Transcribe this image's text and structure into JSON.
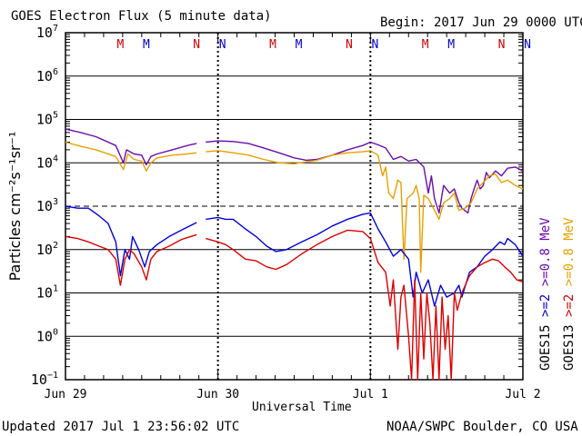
{
  "chart_data": {
    "type": "line",
    "title": "GOES Electron Flux (5 minute data)",
    "begin_label": "Begin: 2017 Jun 29 0000 UTC",
    "xlabel": "Universal Time",
    "ylabel": "Particles cm⁻²s⁻¹sr⁻¹",
    "yscale": "log",
    "ylim": [
      0.1,
      10000000
    ],
    "ytick_labels": [
      {
        "base": "10",
        "exp": "7",
        "value": 10000000
      },
      {
        "base": "10",
        "exp": "6",
        "value": 1000000
      },
      {
        "base": "10",
        "exp": "5",
        "value": 100000
      },
      {
        "base": "10",
        "exp": "4",
        "value": 10000
      },
      {
        "base": "10",
        "exp": "3",
        "value": 1000
      },
      {
        "base": "10",
        "exp": "2",
        "value": 100
      },
      {
        "base": "10",
        "exp": "1",
        "value": 10
      },
      {
        "base": "10",
        "exp": "0",
        "value": 1
      },
      {
        "base": "10",
        "exp": "−1",
        "value": 0.1
      }
    ],
    "xlim": [
      "2017-06-29",
      "2017-07-02"
    ],
    "xtick_labels": [
      "Jun 29",
      "Jun 30",
      "Jul 1",
      "Jul 2"
    ],
    "threshold_line": 1000,
    "grid": true,
    "noon_midnight_markers": [
      {
        "label": "M",
        "day": 0.36,
        "color": "#cc0000"
      },
      {
        "label": "M",
        "day": 0.53,
        "color": "#0000cc"
      },
      {
        "label": "N",
        "day": 0.86,
        "color": "#cc0000"
      },
      {
        "label": "N",
        "day": 1.03,
        "color": "#0000cc"
      },
      {
        "label": "M",
        "day": 1.36,
        "color": "#cc0000"
      },
      {
        "label": "M",
        "day": 1.53,
        "color": "#0000cc"
      },
      {
        "label": "N",
        "day": 1.86,
        "color": "#cc0000"
      },
      {
        "label": "N",
        "day": 2.03,
        "color": "#0000cc"
      },
      {
        "label": "M",
        "day": 2.36,
        "color": "#cc0000"
      },
      {
        "label": "M",
        "day": 2.53,
        "color": "#0000cc"
      },
      {
        "label": "N",
        "day": 2.86,
        "color": "#cc0000"
      },
      {
        "label": "N",
        "day": 3.03,
        "color": "#0000cc"
      }
    ],
    "legend": [
      {
        "prefix": "GOES15",
        "entries": [
          {
            "text": ">=2",
            "color": "#0000dd"
          },
          {
            "text": ">=0.8 MeV",
            "color": "#6a0dad"
          }
        ]
      },
      {
        "prefix": "GOES13",
        "entries": [
          {
            "text": ">=2",
            "color": "#dd0000"
          },
          {
            "text": ">=0.8 MeV",
            "color": "#e8a000"
          }
        ]
      }
    ],
    "series": [
      {
        "name": "GOES15 >=0.8 MeV",
        "color": "#6a0dad",
        "points": [
          [
            0,
            60000
          ],
          [
            0.1,
            50000
          ],
          [
            0.2,
            40000
          ],
          [
            0.33,
            25000
          ],
          [
            0.38,
            10000
          ],
          [
            0.4,
            20000
          ],
          [
            0.45,
            16000
          ],
          [
            0.5,
            15000
          ],
          [
            0.53,
            9000
          ],
          [
            0.56,
            14000
          ],
          [
            0.6,
            16000
          ],
          [
            0.7,
            20000
          ],
          [
            0.8,
            25000
          ],
          [
            0.86,
            28000
          ],
          null,
          [
            0.92,
            30000
          ],
          [
            1.0,
            32000
          ],
          [
            1.1,
            31000
          ],
          [
            1.2,
            28000
          ],
          [
            1.3,
            22000
          ],
          [
            1.4,
            17000
          ],
          [
            1.5,
            13000
          ],
          [
            1.58,
            11500
          ],
          [
            1.65,
            12000
          ],
          [
            1.75,
            15000
          ],
          [
            1.85,
            20000
          ],
          [
            1.95,
            25000
          ],
          [
            2.0,
            30000
          ],
          [
            2.05,
            26000
          ],
          [
            2.1,
            22000
          ],
          [
            2.15,
            12000
          ],
          [
            2.2,
            14000
          ],
          [
            2.25,
            11000
          ],
          [
            2.3,
            12000
          ],
          [
            2.35,
            8000
          ],
          [
            2.38,
            2000
          ],
          [
            2.4,
            5000
          ],
          [
            2.42,
            1500
          ],
          [
            2.45,
            700
          ],
          [
            2.48,
            3000
          ],
          [
            2.52,
            2000
          ],
          [
            2.55,
            2500
          ],
          [
            2.58,
            1200
          ],
          [
            2.6,
            900
          ],
          [
            2.64,
            700
          ],
          [
            2.66,
            1500
          ],
          [
            2.68,
            2500
          ],
          [
            2.7,
            4000
          ],
          [
            2.72,
            2500
          ],
          [
            2.74,
            3000
          ],
          [
            2.76,
            6000
          ],
          [
            2.78,
            4500
          ],
          [
            2.82,
            6500
          ],
          [
            2.86,
            5000
          ],
          [
            2.9,
            7500
          ],
          [
            2.95,
            8000
          ],
          [
            3.0,
            6500
          ]
        ]
      },
      {
        "name": "GOES13 >=0.8 MeV",
        "color": "#e8a000",
        "points": [
          [
            0,
            30000
          ],
          [
            0.1,
            24000
          ],
          [
            0.2,
            20000
          ],
          [
            0.33,
            14000
          ],
          [
            0.38,
            7000
          ],
          [
            0.41,
            16000
          ],
          [
            0.45,
            12000
          ],
          [
            0.5,
            11000
          ],
          [
            0.53,
            6500
          ],
          [
            0.56,
            10000
          ],
          [
            0.6,
            13000
          ],
          [
            0.7,
            15000
          ],
          [
            0.8,
            16000
          ],
          [
            0.86,
            17000
          ],
          null,
          [
            0.92,
            18000
          ],
          [
            1.0,
            19000
          ],
          [
            1.1,
            17000
          ],
          [
            1.2,
            15000
          ],
          [
            1.3,
            12000
          ],
          [
            1.4,
            10000
          ],
          [
            1.5,
            9500
          ],
          [
            1.58,
            10500
          ],
          [
            1.65,
            11500
          ],
          [
            1.75,
            15000
          ],
          [
            1.85,
            17000
          ],
          [
            1.95,
            18000
          ],
          [
            2.0,
            19000
          ],
          [
            2.05,
            15000
          ],
          [
            2.08,
            5000
          ],
          [
            2.1,
            8000
          ],
          [
            2.12,
            2000
          ],
          [
            2.15,
            1500
          ],
          [
            2.18,
            4000
          ],
          [
            2.2,
            3500
          ],
          [
            2.22,
            60
          ],
          [
            2.24,
            1500
          ],
          [
            2.28,
            2000
          ],
          [
            2.3,
            3000
          ],
          [
            2.32,
            1500
          ],
          [
            2.33,
            30
          ],
          [
            2.35,
            1800
          ],
          [
            2.38,
            1500
          ],
          [
            2.42,
            800
          ],
          [
            2.45,
            500
          ],
          [
            2.48,
            1200
          ],
          [
            2.52,
            1500
          ],
          [
            2.55,
            2000
          ],
          [
            2.58,
            800
          ],
          [
            2.62,
            900
          ],
          [
            2.66,
            1200
          ],
          [
            2.7,
            2500
          ],
          [
            2.74,
            3500
          ],
          [
            2.78,
            5000
          ],
          [
            2.82,
            5500
          ],
          [
            2.86,
            3500
          ],
          [
            2.9,
            4000
          ],
          [
            2.95,
            3000
          ],
          [
            3.0,
            2500
          ]
        ]
      },
      {
        "name": "GOES15 >=2 MeV",
        "color": "#0000dd",
        "points": [
          [
            0,
            1000
          ],
          [
            0.08,
            900
          ],
          [
            0.15,
            900
          ],
          [
            0.22,
            600
          ],
          [
            0.28,
            400
          ],
          [
            0.33,
            150
          ],
          [
            0.36,
            25
          ],
          [
            0.39,
            100
          ],
          [
            0.42,
            60
          ],
          [
            0.44,
            200
          ],
          [
            0.48,
            100
          ],
          [
            0.52,
            40
          ],
          [
            0.55,
            90
          ],
          [
            0.6,
            130
          ],
          [
            0.68,
            200
          ],
          [
            0.76,
            280
          ],
          [
            0.86,
            420
          ],
          null,
          [
            0.92,
            500
          ],
          [
            1.0,
            550
          ],
          [
            1.05,
            500
          ],
          [
            1.1,
            500
          ],
          [
            1.18,
            300
          ],
          [
            1.25,
            200
          ],
          [
            1.32,
            120
          ],
          [
            1.38,
            90
          ],
          [
            1.45,
            100
          ],
          [
            1.55,
            150
          ],
          [
            1.65,
            220
          ],
          [
            1.75,
            350
          ],
          [
            1.85,
            500
          ],
          [
            1.95,
            650
          ],
          [
            2.0,
            700
          ],
          [
            2.05,
            300
          ],
          [
            2.1,
            150
          ],
          [
            2.15,
            70
          ],
          [
            2.2,
            100
          ],
          [
            2.25,
            60
          ],
          [
            2.28,
            8
          ],
          [
            2.3,
            30
          ],
          [
            2.34,
            10
          ],
          [
            2.38,
            20
          ],
          [
            2.42,
            5
          ],
          [
            2.46,
            15
          ],
          [
            2.5,
            8
          ],
          [
            2.55,
            10
          ],
          [
            2.58,
            15
          ],
          [
            2.6,
            8
          ],
          [
            2.65,
            30
          ],
          [
            2.7,
            40
          ],
          [
            2.75,
            70
          ],
          [
            2.8,
            100
          ],
          [
            2.85,
            150
          ],
          [
            2.88,
            130
          ],
          [
            2.9,
            180
          ],
          [
            2.95,
            130
          ],
          [
            3.0,
            70
          ]
        ]
      },
      {
        "name": "GOES13 >=2 MeV",
        "color": "#dd0000",
        "points": [
          [
            0,
            200
          ],
          [
            0.08,
            180
          ],
          [
            0.15,
            150
          ],
          [
            0.22,
            120
          ],
          [
            0.28,
            100
          ],
          [
            0.33,
            60
          ],
          [
            0.36,
            15
          ],
          [
            0.39,
            60
          ],
          [
            0.42,
            100
          ],
          [
            0.45,
            80
          ],
          [
            0.5,
            40
          ],
          [
            0.53,
            20
          ],
          [
            0.56,
            60
          ],
          [
            0.6,
            90
          ],
          [
            0.68,
            120
          ],
          [
            0.76,
            170
          ],
          [
            0.86,
            220
          ],
          null,
          [
            0.92,
            180
          ],
          [
            1.0,
            150
          ],
          [
            1.05,
            130
          ],
          [
            1.1,
            100
          ],
          [
            1.18,
            60
          ],
          [
            1.25,
            55
          ],
          [
            1.32,
            40
          ],
          [
            1.38,
            35
          ],
          [
            1.45,
            45
          ],
          [
            1.55,
            80
          ],
          [
            1.65,
            130
          ],
          [
            1.75,
            200
          ],
          [
            1.85,
            280
          ],
          [
            1.95,
            260
          ],
          [
            2.0,
            180
          ],
          [
            2.05,
            50
          ],
          [
            2.1,
            30
          ],
          [
            2.13,
            5
          ],
          [
            2.15,
            20
          ],
          [
            2.18,
            0.5
          ],
          [
            2.2,
            8
          ],
          [
            2.22,
            15
          ],
          [
            2.25,
            1
          ],
          [
            2.27,
            0.1
          ],
          [
            2.29,
            20
          ],
          [
            2.31,
            0.1
          ],
          [
            2.33,
            10
          ],
          [
            2.35,
            0.3
          ],
          [
            2.37,
            10
          ],
          [
            2.39,
            2
          ],
          [
            2.41,
            0.1
          ],
          [
            2.43,
            5
          ],
          [
            2.45,
            0.1
          ],
          [
            2.47,
            8
          ],
          [
            2.49,
            0.5
          ],
          [
            2.51,
            3
          ],
          [
            2.53,
            0.1
          ],
          [
            2.55,
            10
          ],
          [
            2.57,
            4
          ],
          [
            2.6,
            10
          ],
          [
            2.65,
            25
          ],
          [
            2.7,
            40
          ],
          [
            2.75,
            50
          ],
          [
            2.8,
            60
          ],
          [
            2.84,
            55
          ],
          [
            2.88,
            40
          ],
          [
            2.92,
            30
          ],
          [
            2.96,
            20
          ],
          [
            3.0,
            18
          ]
        ]
      }
    ]
  },
  "footer": {
    "updated": "Updated 2017 Jul  1 23:56:02 UTC",
    "credit": "NOAA/SWPC Boulder, CO USA"
  }
}
